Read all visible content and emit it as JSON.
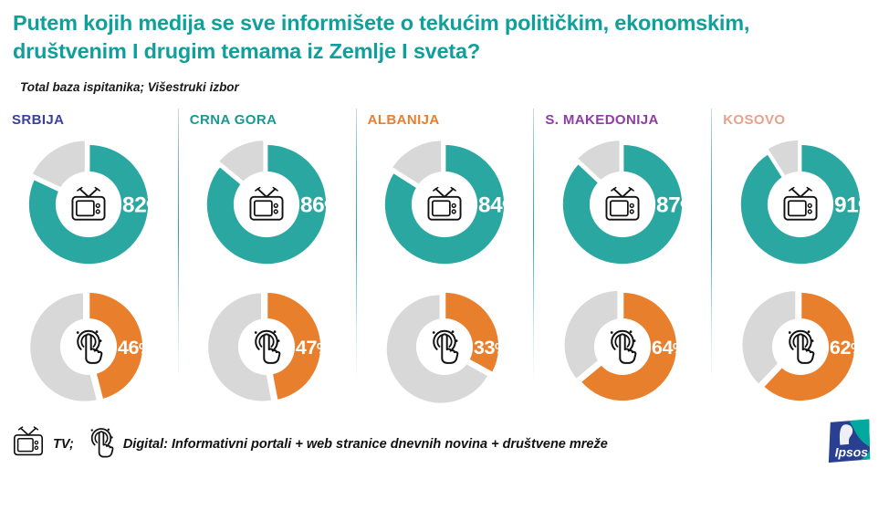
{
  "header": {
    "title": "Putem kojih medija se sve informišete o tekućim političkim, ekonomskim, društvenim I drugim temama iz Zemlje I sveta?",
    "subtitle": "Total baza ispitanika; Višestruki izbor"
  },
  "colors": {
    "tv_ring": "#2aa7a0",
    "digital_ring": "#e87f2d",
    "remainder_gray": "#d8d8d8",
    "title_teal": "#0fa09b",
    "icon_black": "#111111"
  },
  "countries": [
    {
      "name": "SRBIJA",
      "label_color": "#3a3fa0",
      "tv": 82,
      "tv_label": "82%",
      "digital": 46,
      "digital_label": "46%"
    },
    {
      "name": "CRNA GORA",
      "label_color": "#189a93",
      "tv": 86,
      "tv_label": "86%",
      "digital": 47,
      "digital_label": "47%"
    },
    {
      "name": "ALBANIJA",
      "label_color": "#e87f2d",
      "tv": 84,
      "tv_label": "84%",
      "digital": 33,
      "digital_label": "33%"
    },
    {
      "name": "S. MAKEDONIJA",
      "label_color": "#8f3da4",
      "tv": 87,
      "tv_label": "87%",
      "digital": 64,
      "digital_label": "64%"
    },
    {
      "name": "KOSOVO",
      "label_color": "#e8a28a",
      "tv": 91,
      "tv_label": "91%",
      "digital": 62,
      "digital_label": "62%"
    }
  ],
  "legend": {
    "tv_label": "TV;",
    "digital_label": "Digital: Informativni portali + web stranice dnevnih novina + društvene mreže"
  },
  "footer": {
    "logo_text": "Ipsos"
  },
  "chart_data": {
    "type": "pie",
    "subtype": "donut-grid",
    "title": "Putem kojih medija se sve informišete o tekućim političkim, ekonomskim, društvenim I drugim temama iz Zemlje I sveta?",
    "subtitle": "Total baza ispitanika; Višestruki izbor",
    "categories": [
      "SRBIJA",
      "CRNA GORA",
      "ALBANIJA",
      "S. MAKEDONIJA",
      "KOSOVO"
    ],
    "series": [
      {
        "name": "TV",
        "values": [
          82,
          86,
          84,
          87,
          91
        ],
        "color": "#2aa7a0",
        "unit": "%"
      },
      {
        "name": "Digital",
        "values": [
          46,
          47,
          33,
          64,
          62
        ],
        "color": "#e87f2d",
        "unit": "%"
      }
    ],
    "remainder_color": "#d8d8d8",
    "value_range": [
      0,
      100
    ],
    "legend_position": "bottom"
  }
}
